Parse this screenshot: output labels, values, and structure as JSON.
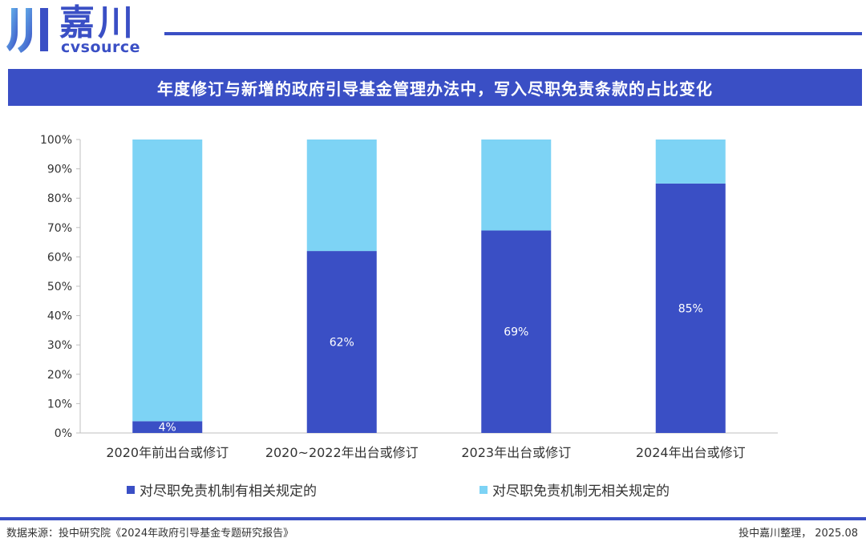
{
  "brand": {
    "name_cn": "嘉川",
    "name_en": "cvsource",
    "accent": "#3a4fc5"
  },
  "title": "年度修订与新增的政府引导基金管理办法中，写入尽职免责条款的占比变化",
  "chart_data": {
    "type": "bar",
    "stacked": true,
    "categories": [
      "2020年前出台或修订",
      "2020~2022年出台或修订",
      "2023年出台或修订",
      "2024年出台或修订"
    ],
    "series": [
      {
        "name": "对尽职免责机制有相关规定的",
        "values": [
          4,
          62,
          69,
          85
        ],
        "color": "#3a4fc5",
        "data_labels": [
          "4%",
          "62%",
          "69%",
          "85%"
        ]
      },
      {
        "name": "对尽职免责机制无相关规定的",
        "values": [
          96,
          38,
          31,
          15
        ],
        "color": "#7dd3f5"
      }
    ],
    "ylim": [
      0,
      100
    ],
    "yticks": [
      0,
      10,
      20,
      30,
      40,
      50,
      60,
      70,
      80,
      90,
      100
    ],
    "ytick_labels": [
      "0%",
      "10%",
      "20%",
      "30%",
      "40%",
      "50%",
      "60%",
      "70%",
      "80%",
      "90%",
      "100%"
    ],
    "grid": false,
    "legend_position": "bottom"
  },
  "footer": {
    "source": "数据来源：投中研究院《2024年政府引导基金专题研究报告》",
    "credit": "投中嘉川整理，  2025.08"
  }
}
